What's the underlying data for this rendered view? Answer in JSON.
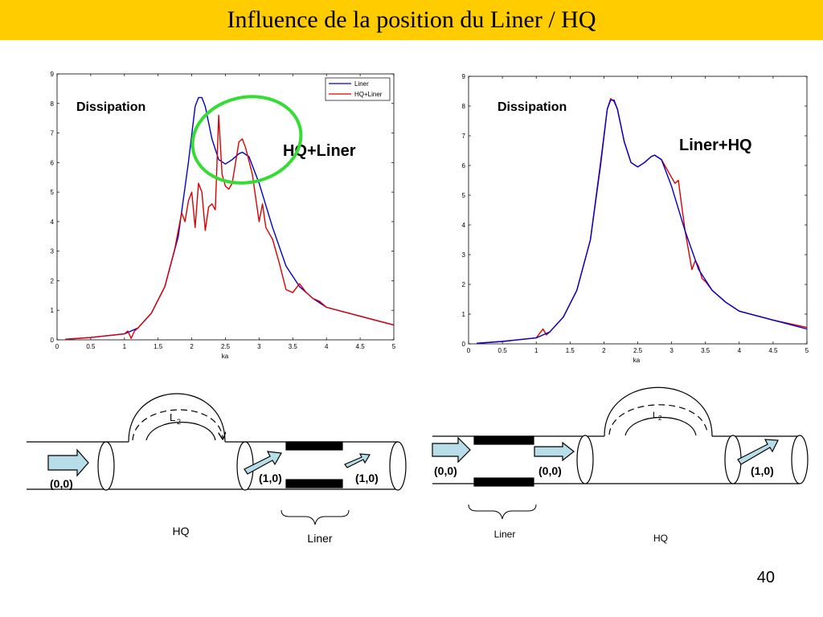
{
  "slide": {
    "title": "Influence de la position du Liner / HQ",
    "page_number": "40",
    "colors": {
      "title_bar": "#FFCC00",
      "liner_series": "#0000CC",
      "hq_liner_series": "#DD0000",
      "highlight_ellipse": "#33DD33"
    }
  },
  "chart_data": [
    {
      "type": "line",
      "annotation_1": "Dissipation",
      "annotation_2": "HQ+Liner",
      "xlabel": "ka",
      "ylabel": "",
      "xlim": [
        0,
        5
      ],
      "ylim": [
        0,
        9
      ],
      "xticks": [
        "0",
        "0.5",
        "1",
        "1.5",
        "2",
        "2.5",
        "3",
        "3.5",
        "4",
        "4.5",
        "5"
      ],
      "yticks": [
        "0",
        "1",
        "2",
        "3",
        "4",
        "5",
        "6",
        "7",
        "8",
        "9"
      ],
      "legend": {
        "position": "top-right",
        "entries": [
          "Liner",
          "HQ+Liner"
        ]
      },
      "series": [
        {
          "name": "Liner",
          "color": "#0000CC",
          "x": [
            0.12,
            0.5,
            1.0,
            1.2,
            1.4,
            1.6,
            1.8,
            1.95,
            2.05,
            2.1,
            2.15,
            2.2,
            2.3,
            2.4,
            2.5,
            2.6,
            2.7,
            2.75,
            2.85,
            3.0,
            3.2,
            3.4,
            3.6,
            3.8,
            4.0,
            4.5,
            5.0
          ],
          "y": [
            0.02,
            0.08,
            0.2,
            0.4,
            0.9,
            1.8,
            3.5,
            6.0,
            7.9,
            8.2,
            8.2,
            7.9,
            6.8,
            6.1,
            5.95,
            6.1,
            6.3,
            6.35,
            6.2,
            5.3,
            3.8,
            2.5,
            1.8,
            1.4,
            1.1,
            0.8,
            0.5
          ]
        },
        {
          "name": "HQ+Liner",
          "color": "#DD0000",
          "x": [
            0.12,
            0.5,
            1.0,
            1.05,
            1.1,
            1.15,
            1.2,
            1.4,
            1.6,
            1.75,
            1.85,
            1.9,
            1.95,
            2.0,
            2.05,
            2.1,
            2.15,
            2.2,
            2.25,
            2.3,
            2.35,
            2.4,
            2.45,
            2.5,
            2.55,
            2.6,
            2.7,
            2.75,
            2.8,
            2.9,
            3.0,
            3.05,
            3.1,
            3.2,
            3.3,
            3.4,
            3.5,
            3.6,
            3.7,
            3.8,
            3.9,
            4.0,
            4.5,
            5.0
          ],
          "y": [
            0.02,
            0.08,
            0.2,
            0.3,
            0.05,
            0.3,
            0.4,
            0.9,
            1.8,
            3.1,
            4.3,
            4.0,
            4.7,
            5.0,
            3.8,
            5.3,
            5.0,
            3.7,
            4.5,
            4.6,
            4.4,
            7.6,
            5.6,
            5.2,
            5.1,
            5.3,
            6.7,
            6.8,
            6.5,
            5.6,
            4.0,
            4.6,
            3.8,
            3.4,
            2.6,
            1.7,
            1.6,
            1.9,
            1.6,
            1.4,
            1.3,
            1.1,
            0.8,
            0.5
          ]
        }
      ]
    },
    {
      "type": "line",
      "annotation_1": "Dissipation",
      "annotation_2": "Liner+HQ",
      "xlabel": "ka",
      "ylabel": "",
      "xlim": [
        0,
        5
      ],
      "ylim": [
        0,
        9
      ],
      "xticks": [
        "0",
        "0.5",
        "1",
        "1.5",
        "2",
        "2.5",
        "3",
        "3.5",
        "4",
        "4.5",
        "5"
      ],
      "yticks": [
        "0",
        "1",
        "2",
        "3",
        "4",
        "5",
        "6",
        "7",
        "8",
        "9"
      ],
      "series": [
        {
          "name": "Liner+HQ (blue)",
          "color": "#0000CC",
          "x": [
            0.12,
            0.5,
            1.0,
            1.2,
            1.4,
            1.6,
            1.8,
            1.95,
            2.05,
            2.1,
            2.15,
            2.2,
            2.3,
            2.4,
            2.5,
            2.6,
            2.7,
            2.75,
            2.85,
            3.0,
            3.2,
            3.4,
            3.6,
            3.8,
            4.0,
            4.5,
            5.0
          ],
          "y": [
            0.02,
            0.08,
            0.2,
            0.4,
            0.9,
            1.8,
            3.5,
            6.0,
            7.9,
            8.2,
            8.2,
            7.9,
            6.8,
            6.1,
            5.95,
            6.1,
            6.3,
            6.35,
            6.2,
            5.3,
            3.8,
            2.5,
            1.8,
            1.4,
            1.1,
            0.8,
            0.5
          ]
        },
        {
          "name": "Liner+HQ (red)",
          "color": "#DD0000",
          "x": [
            0.12,
            0.5,
            1.0,
            1.05,
            1.1,
            1.15,
            1.2,
            1.4,
            1.6,
            1.8,
            1.95,
            2.05,
            2.1,
            2.15,
            2.2,
            2.3,
            2.4,
            2.5,
            2.6,
            2.7,
            2.75,
            2.85,
            3.0,
            3.05,
            3.1,
            3.2,
            3.3,
            3.35,
            3.4,
            3.45,
            3.5,
            3.6,
            3.8,
            4.0,
            4.5,
            5.0
          ],
          "y": [
            0.02,
            0.08,
            0.2,
            0.35,
            0.5,
            0.3,
            0.4,
            0.9,
            1.8,
            3.5,
            6.1,
            7.9,
            8.25,
            8.15,
            7.9,
            6.8,
            6.1,
            5.95,
            6.1,
            6.3,
            6.35,
            6.2,
            5.6,
            5.4,
            5.5,
            3.8,
            2.5,
            2.8,
            2.6,
            2.2,
            2.1,
            1.8,
            1.4,
            1.1,
            0.8,
            0.55
          ]
        }
      ]
    }
  ],
  "diagram_hq_liner": {
    "l2_main": "L",
    "l2_sub": "2",
    "labels": [
      "(0,0)",
      "(1,0)",
      "(1,0)"
    ],
    "brace_label": "Liner",
    "hq_label": "HQ"
  },
  "diagram_liner_hq": {
    "l2_main": "L",
    "l2_sub": "2",
    "labels": [
      "(0,0)",
      "(0,0)",
      "(1,0)"
    ],
    "brace_label": "Liner",
    "hq_label": "HQ"
  }
}
